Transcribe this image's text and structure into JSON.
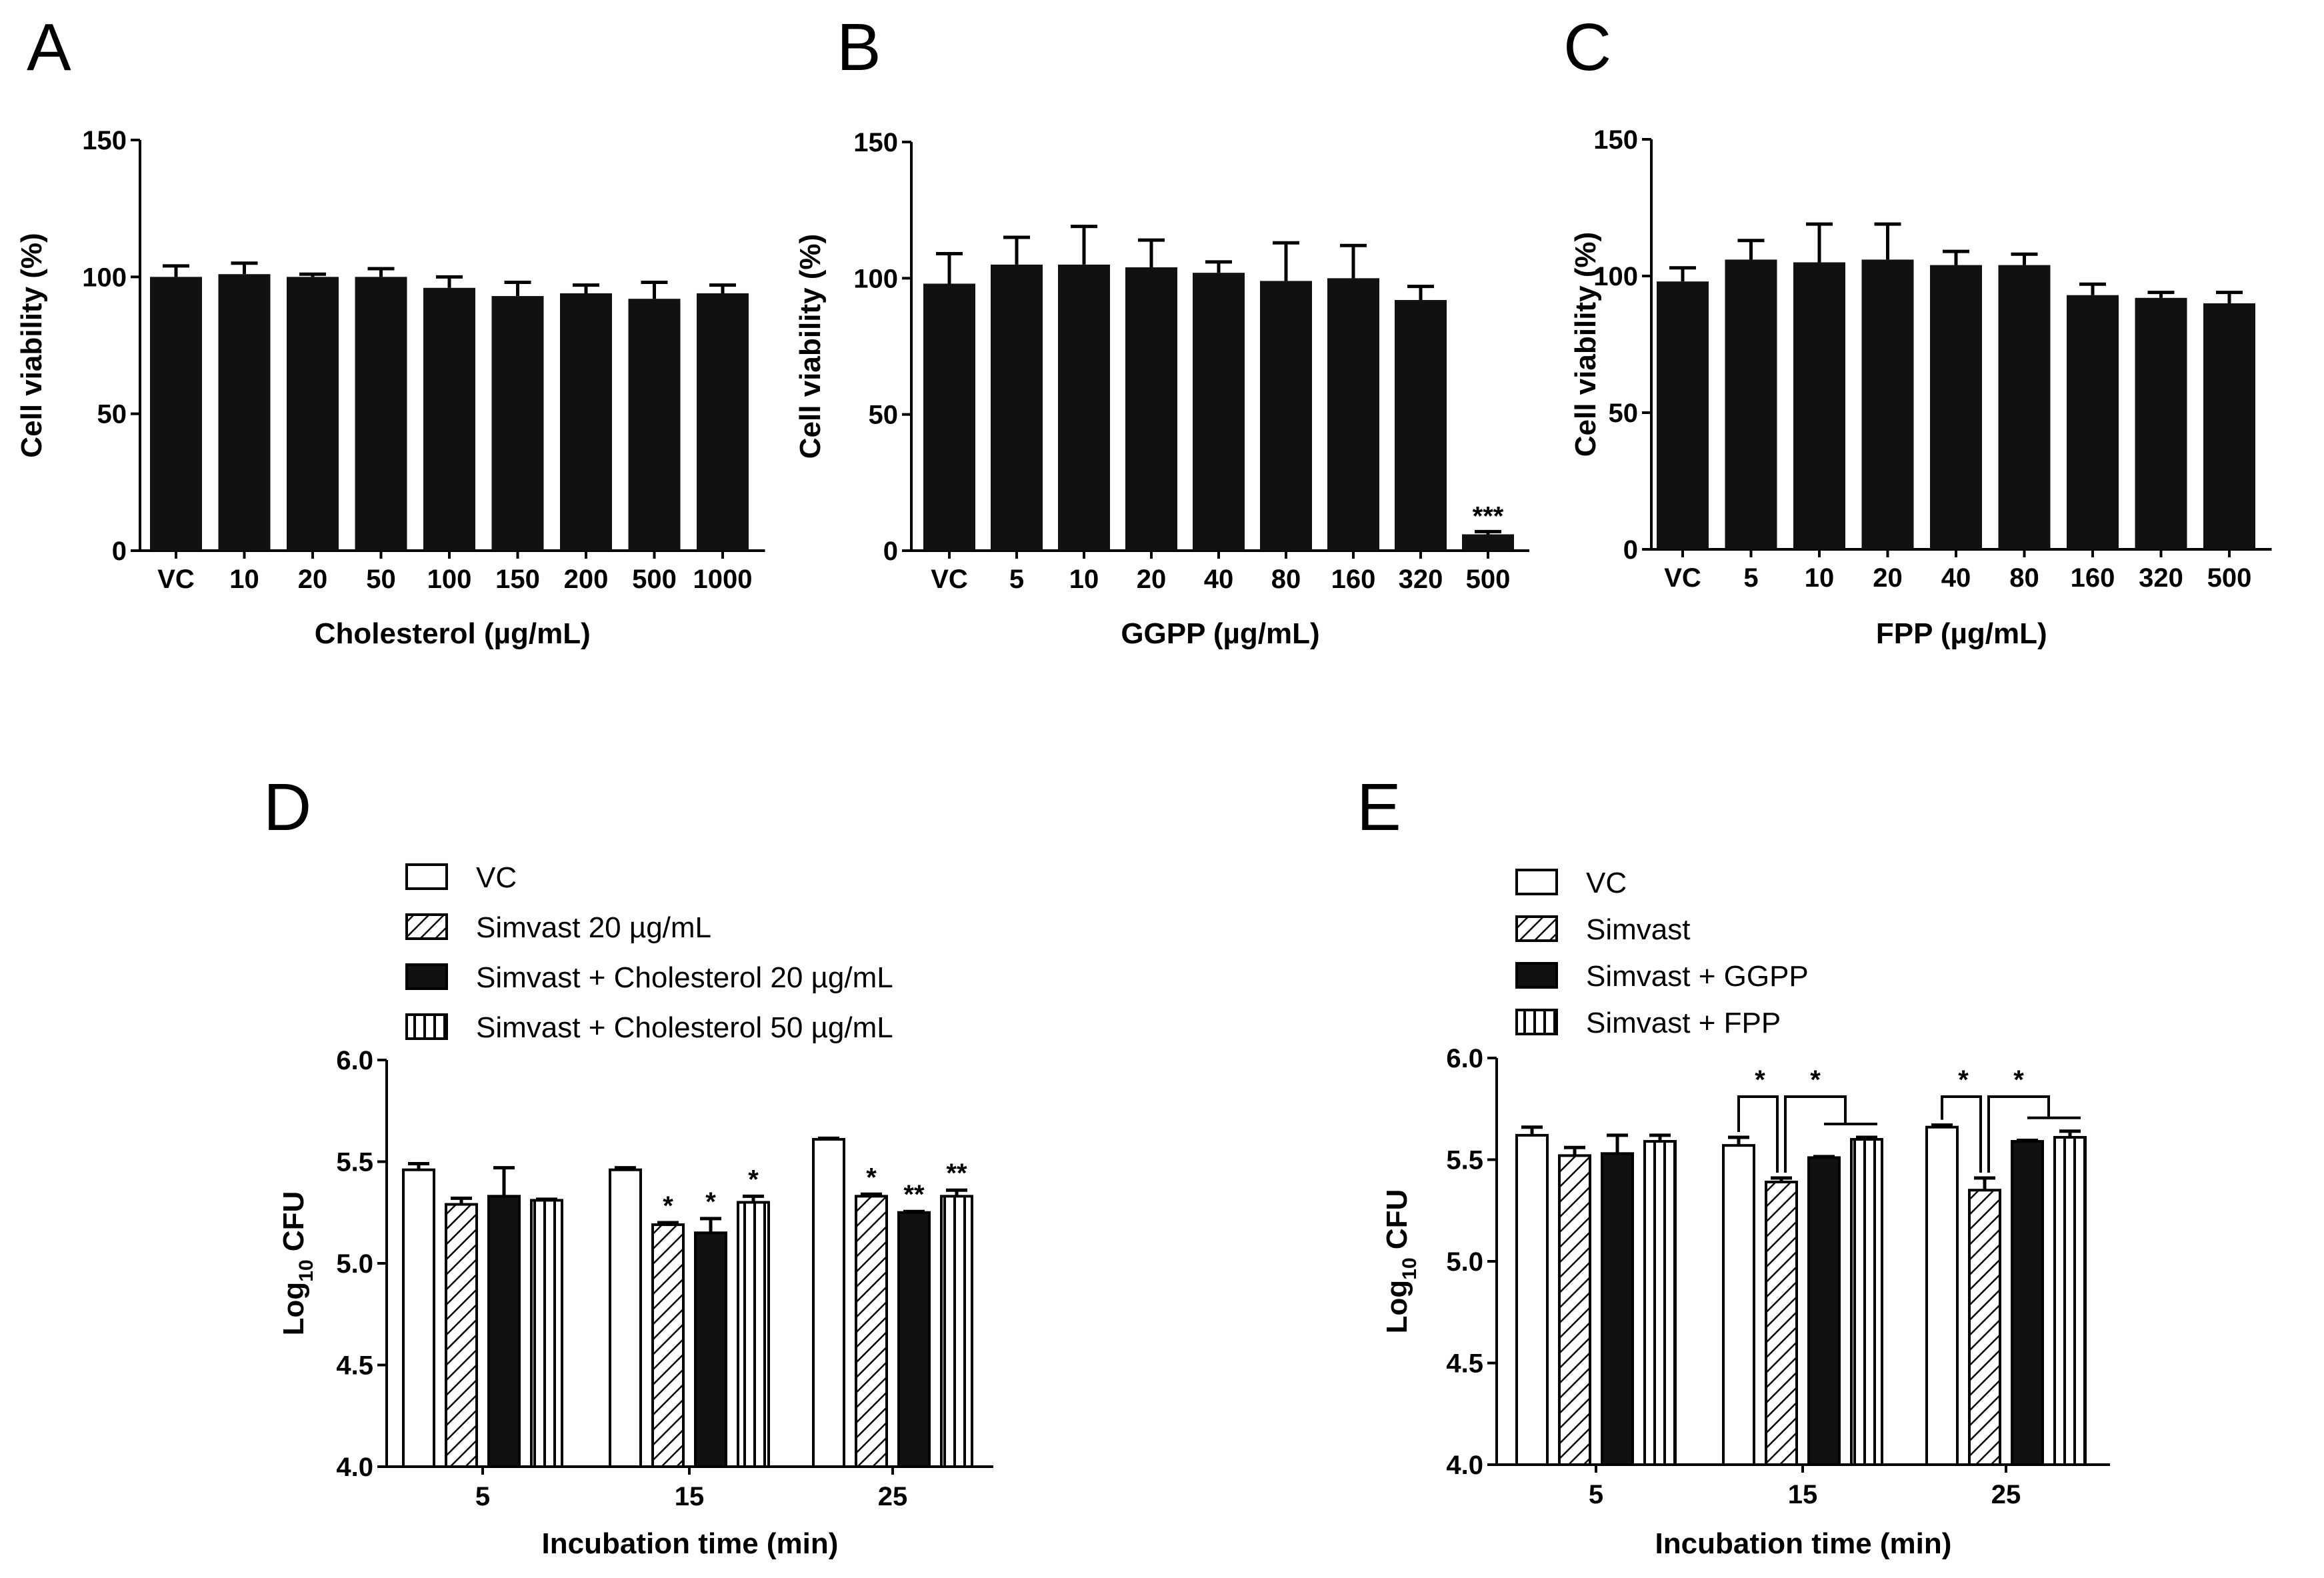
{
  "chart_data": [
    {
      "panel": "A",
      "type": "bar",
      "categories": [
        "VC",
        "10",
        "20",
        "50",
        "100",
        "150",
        "200",
        "500",
        "1000"
      ],
      "values": [
        100,
        101,
        100,
        100,
        96,
        93,
        94,
        92,
        94
      ],
      "errors": [
        4,
        4,
        1,
        3,
        4,
        5,
        3,
        6,
        3
      ],
      "annotations": [
        "",
        "",
        "",
        "",
        "",
        "",
        "",
        "",
        ""
      ],
      "xlabel": "Cholesterol  (µg/mL)",
      "ylabel": "Cell viability (%)",
      "ylim": [
        0,
        150
      ],
      "yticks": [
        0,
        50,
        100,
        150
      ],
      "fill": "#111111"
    },
    {
      "panel": "B",
      "type": "bar",
      "categories": [
        "VC",
        "5",
        "10",
        "20",
        "40",
        "80",
        "160",
        "320",
        "500"
      ],
      "values": [
        98,
        105,
        105,
        104,
        102,
        99,
        100,
        92,
        6
      ],
      "errors": [
        11,
        10,
        14,
        10,
        4,
        14,
        12,
        5,
        1
      ],
      "annotations": [
        "",
        "",
        "",
        "",
        "",
        "",
        "",
        "",
        "***"
      ],
      "xlabel": "GGPP  (µg/mL)",
      "ylabel": "Cell viability (%)",
      "ylim": [
        0,
        150
      ],
      "yticks": [
        0,
        50,
        100,
        150
      ],
      "fill": "#111111"
    },
    {
      "panel": "C",
      "type": "bar",
      "categories": [
        "VC",
        "5",
        "10",
        "20",
        "40",
        "80",
        "160",
        "320",
        "500"
      ],
      "values": [
        98,
        106,
        105,
        106,
        104,
        104,
        93,
        92,
        90
      ],
      "errors": [
        5,
        7,
        14,
        13,
        5,
        4,
        4,
        2,
        4
      ],
      "annotations": [
        "",
        "",
        "",
        "",
        "",
        "",
        "",
        "",
        ""
      ],
      "xlabel": "FPP  (µg/mL)",
      "ylabel": "Cell viability (%)",
      "ylim": [
        0,
        150
      ],
      "yticks": [
        0,
        50,
        100,
        150
      ],
      "fill": "#111111"
    },
    {
      "panel": "D",
      "type": "grouped_bar",
      "categories": [
        "5",
        "15",
        "25"
      ],
      "series": [
        {
          "name": "VC",
          "pattern": "white",
          "values": [
            5.46,
            5.46,
            5.61
          ],
          "errors": [
            0.03,
            0.01,
            0.005
          ],
          "annotations": [
            "",
            "",
            ""
          ]
        },
        {
          "name": "Simvast 20 µg/mL",
          "pattern": "hatch",
          "values": [
            5.29,
            5.19,
            5.33
          ],
          "errors": [
            0.03,
            0.01,
            0.01
          ],
          "annotations": [
            "",
            "*",
            "*"
          ]
        },
        {
          "name": "Simvast + Cholesterol 20  µg/mL",
          "pattern": "black",
          "values": [
            5.33,
            5.15,
            5.25
          ],
          "errors": [
            0.14,
            0.07,
            0.005
          ],
          "annotations": [
            "",
            "*",
            "**"
          ]
        },
        {
          "name": "Simvast + Cholesterol 50  µg/mL",
          "pattern": "vstripe",
          "values": [
            5.31,
            5.3,
            5.33
          ],
          "errors": [
            0.005,
            0.03,
            0.03
          ],
          "annotations": [
            "",
            "*",
            "**"
          ]
        }
      ],
      "xlabel": "Incubation time (min)",
      "ylabel": "Log10 CFU",
      "ylabel_main": "Log",
      "ylabel_sub": "10",
      "ylabel_suffix": " CFU",
      "ylim": [
        4.0,
        6.0
      ],
      "yticks": [
        4.0,
        4.5,
        5.0,
        5.5,
        6.0
      ],
      "ytick_labels": [
        "4.0",
        "4.5",
        "5.0",
        "5.5",
        "6.0"
      ],
      "significance": []
    },
    {
      "panel": "E",
      "type": "grouped_bar",
      "categories": [
        "5",
        "15",
        "25"
      ],
      "series": [
        {
          "name": "VC",
          "pattern": "white",
          "values": [
            5.62,
            5.57,
            5.66
          ],
          "errors": [
            0.04,
            0.04,
            0.01
          ],
          "annotations": [
            "",
            "",
            ""
          ]
        },
        {
          "name": "Simvast",
          "pattern": "hatch",
          "values": [
            5.52,
            5.39,
            5.35
          ],
          "errors": [
            0.04,
            0.02,
            0.06
          ],
          "annotations": [
            "",
            "",
            ""
          ]
        },
        {
          "name": "Simvast + GGPP",
          "pattern": "black",
          "values": [
            5.53,
            5.51,
            5.59
          ],
          "errors": [
            0.09,
            0.005,
            0.005
          ],
          "annotations": [
            "",
            "",
            ""
          ]
        },
        {
          "name": "Simvast + FPP",
          "pattern": "vstripe",
          "values": [
            5.59,
            5.6,
            5.61
          ],
          "errors": [
            0.03,
            0.01,
            0.03
          ],
          "annotations": [
            "",
            "",
            ""
          ]
        }
      ],
      "xlabel": "Incubation time (min)",
      "ylabel": "Log10 CFU",
      "ylabel_main": "Log",
      "ylabel_sub": "10",
      "ylabel_suffix": " CFU",
      "ylim": [
        4.0,
        6.0
      ],
      "yticks": [
        4.0,
        4.5,
        5.0,
        5.5,
        6.0
      ],
      "ytick_labels": [
        "4.0",
        "4.5",
        "5.0",
        "5.5",
        "6.0"
      ],
      "significance": [
        {
          "group": 1,
          "type": "pair",
          "from": 0,
          "to": 1,
          "level": 5.81,
          "label": "*"
        },
        {
          "group": 1,
          "type": "span",
          "from": 1,
          "to": [
            2,
            3
          ],
          "level": 5.81,
          "label": "*"
        },
        {
          "group": 2,
          "type": "pair",
          "from": 0,
          "to": 1,
          "level": 5.81,
          "label": "*"
        },
        {
          "group": 2,
          "type": "span",
          "from": 1,
          "to": [
            2,
            3
          ],
          "level": 5.81,
          "label": "*"
        }
      ]
    }
  ]
}
